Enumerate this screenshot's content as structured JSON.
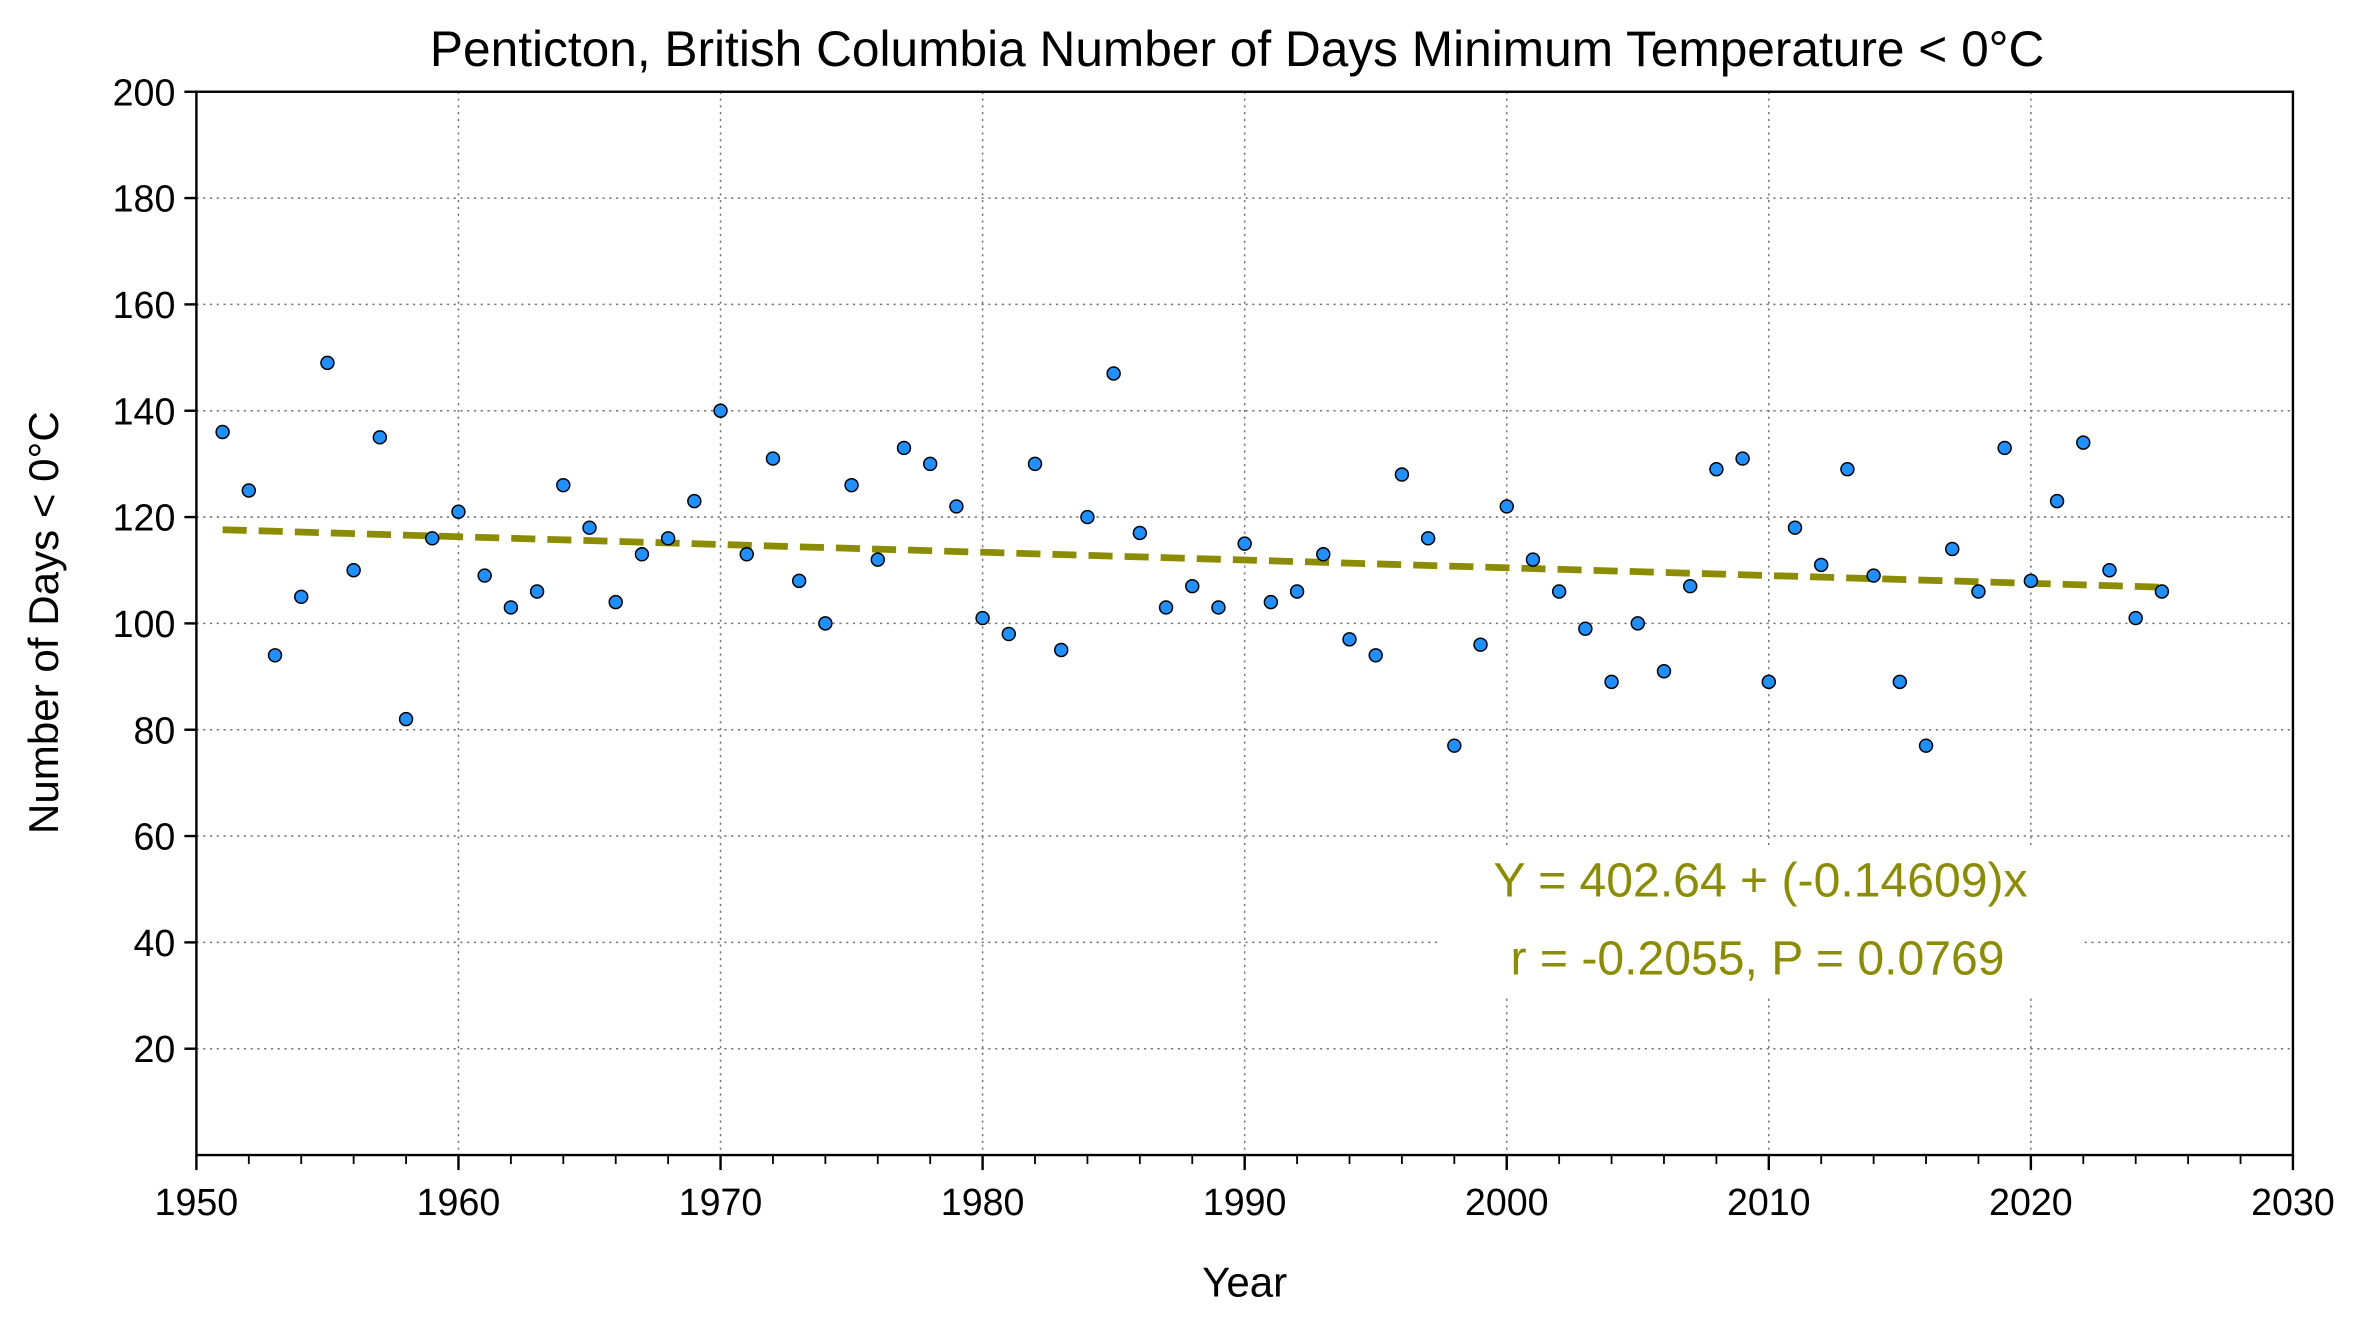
{
  "chart_data": {
    "type": "scatter",
    "title": "Penticton, British Columbia Number of Days Minimum Temperature  < 0°C",
    "xlabel": "Year",
    "ylabel": "Number of Days < 0°C",
    "xlim": [
      1950,
      2030
    ],
    "ylim": [
      0,
      200
    ],
    "xticks": [
      1950,
      1960,
      1970,
      1980,
      1990,
      2000,
      2010,
      2020,
      2030
    ],
    "yticks": [
      20,
      40,
      60,
      80,
      100,
      120,
      140,
      160,
      180,
      200
    ],
    "grid": true,
    "x": [
      1951,
      1952,
      1953,
      1954,
      1955,
      1956,
      1957,
      1958,
      1959,
      1960,
      1961,
      1962,
      1963,
      1964,
      1965,
      1966,
      1967,
      1968,
      1969,
      1970,
      1971,
      1972,
      1973,
      1974,
      1975,
      1976,
      1977,
      1978,
      1979,
      1980,
      1981,
      1982,
      1983,
      1984,
      1985,
      1986,
      1987,
      1988,
      1989,
      1990,
      1991,
      1992,
      1993,
      1994,
      1995,
      1996,
      1997,
      1998,
      1999,
      2000,
      2001,
      2002,
      2003,
      2004,
      2005,
      2006,
      2007,
      2008,
      2009,
      2010,
      2011,
      2012,
      2013,
      2014,
      2015,
      2016,
      2017,
      2018,
      2019,
      2020,
      2021,
      2022,
      2023,
      2024,
      2025
    ],
    "y": [
      136,
      125,
      94,
      105,
      149,
      110,
      135,
      82,
      116,
      121,
      109,
      103,
      106,
      126,
      118,
      104,
      113,
      116,
      123,
      140,
      113,
      131,
      108,
      100,
      126,
      112,
      133,
      130,
      122,
      101,
      98,
      130,
      95,
      120,
      147,
      117,
      103,
      107,
      103,
      115,
      104,
      106,
      113,
      97,
      94,
      128,
      116,
      77,
      96,
      122,
      112,
      106,
      99,
      89,
      100,
      91,
      107,
      129,
      131,
      89,
      118,
      111,
      129,
      109,
      89,
      77,
      114,
      106,
      133,
      108,
      123,
      134,
      110,
      101,
      106
    ],
    "trend": {
      "intercept": 402.64,
      "slope": -0.14609,
      "x_range": [
        1951,
        2025
      ]
    },
    "annotations": [
      "Y = 402.64 + (-0.14609)x",
      "r = -0.2055, P = 0.0769"
    ],
    "colors": {
      "points": "#1e90ff",
      "trend": "#8c8c00"
    }
  }
}
